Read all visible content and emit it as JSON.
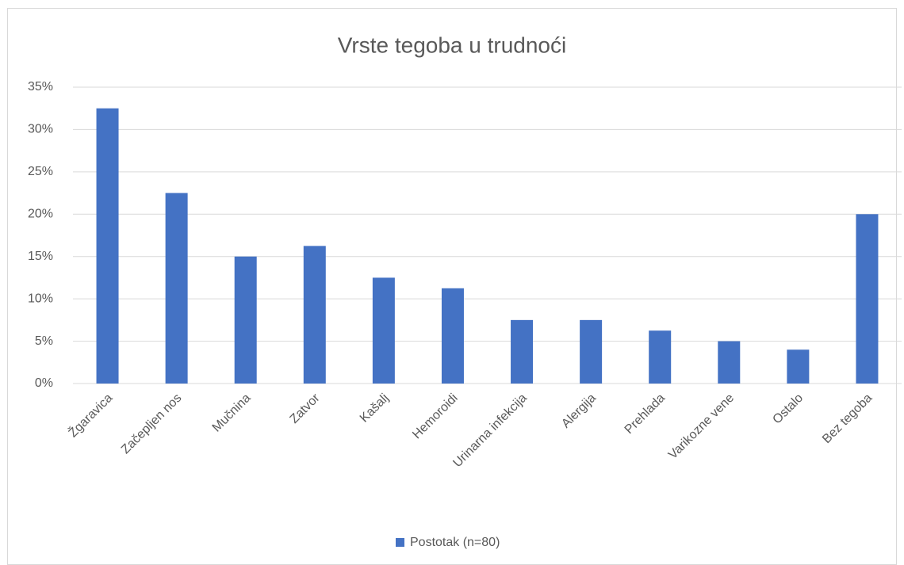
{
  "chart_data": {
    "type": "bar",
    "title": "Vrste tegoba u trudnoći",
    "categories": [
      "Žgaravica",
      "Začepljen nos",
      "Mučnina",
      "Zatvor",
      "Kašalj",
      "Hemoroidi",
      "Urinarna infekcija",
      "Alergija",
      "Prehlada",
      "Varikozne vene",
      "Ostalo",
      "Bez tegoba"
    ],
    "series": [
      {
        "name": "Postotak (n=80)",
        "color": "#4472c4",
        "values": [
          32.5,
          22.5,
          15,
          16.25,
          12.5,
          11.25,
          7.5,
          7.5,
          6.25,
          5,
          4,
          20
        ]
      }
    ],
    "ylim": [
      0,
      35
    ],
    "yticks": [
      {
        "value": 0,
        "label": "0%"
      },
      {
        "value": 5,
        "label": "5%"
      },
      {
        "value": 10,
        "label": "10%"
      },
      {
        "value": 15,
        "label": "15%"
      },
      {
        "value": 20,
        "label": "20%"
      },
      {
        "value": 25,
        "label": "25%"
      },
      {
        "value": 30,
        "label": "30%"
      },
      {
        "value": 35,
        "label": "35%"
      }
    ],
    "grid": true,
    "legend": "bottom"
  }
}
